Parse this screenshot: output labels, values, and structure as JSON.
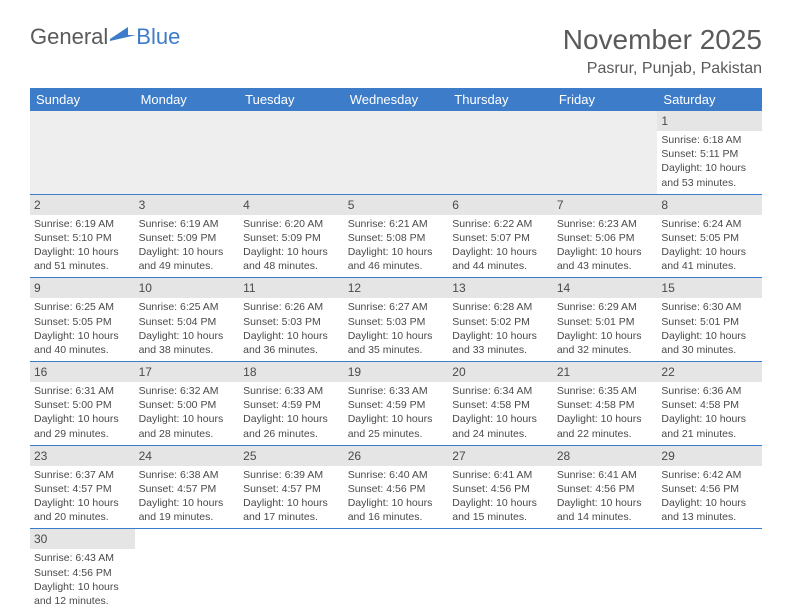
{
  "logo": {
    "general": "General",
    "blue": "Blue"
  },
  "title": "November 2025",
  "location": "Pasrur, Punjab, Pakistan",
  "colors": {
    "header_bg": "#3d7cc9",
    "header_text": "#ffffff",
    "daynum_bg": "#e5e5e5",
    "text": "#4a4a4a",
    "border": "#3d7cc9"
  },
  "day_headers": [
    "Sunday",
    "Monday",
    "Tuesday",
    "Wednesday",
    "Thursday",
    "Friday",
    "Saturday"
  ],
  "weeks": [
    [
      null,
      null,
      null,
      null,
      null,
      null,
      {
        "n": "1",
        "sr": "Sunrise: 6:18 AM",
        "ss": "Sunset: 5:11 PM",
        "dl": "Daylight: 10 hours and 53 minutes."
      }
    ],
    [
      {
        "n": "2",
        "sr": "Sunrise: 6:19 AM",
        "ss": "Sunset: 5:10 PM",
        "dl": "Daylight: 10 hours and 51 minutes."
      },
      {
        "n": "3",
        "sr": "Sunrise: 6:19 AM",
        "ss": "Sunset: 5:09 PM",
        "dl": "Daylight: 10 hours and 49 minutes."
      },
      {
        "n": "4",
        "sr": "Sunrise: 6:20 AM",
        "ss": "Sunset: 5:09 PM",
        "dl": "Daylight: 10 hours and 48 minutes."
      },
      {
        "n": "5",
        "sr": "Sunrise: 6:21 AM",
        "ss": "Sunset: 5:08 PM",
        "dl": "Daylight: 10 hours and 46 minutes."
      },
      {
        "n": "6",
        "sr": "Sunrise: 6:22 AM",
        "ss": "Sunset: 5:07 PM",
        "dl": "Daylight: 10 hours and 44 minutes."
      },
      {
        "n": "7",
        "sr": "Sunrise: 6:23 AM",
        "ss": "Sunset: 5:06 PM",
        "dl": "Daylight: 10 hours and 43 minutes."
      },
      {
        "n": "8",
        "sr": "Sunrise: 6:24 AM",
        "ss": "Sunset: 5:05 PM",
        "dl": "Daylight: 10 hours and 41 minutes."
      }
    ],
    [
      {
        "n": "9",
        "sr": "Sunrise: 6:25 AM",
        "ss": "Sunset: 5:05 PM",
        "dl": "Daylight: 10 hours and 40 minutes."
      },
      {
        "n": "10",
        "sr": "Sunrise: 6:25 AM",
        "ss": "Sunset: 5:04 PM",
        "dl": "Daylight: 10 hours and 38 minutes."
      },
      {
        "n": "11",
        "sr": "Sunrise: 6:26 AM",
        "ss": "Sunset: 5:03 PM",
        "dl": "Daylight: 10 hours and 36 minutes."
      },
      {
        "n": "12",
        "sr": "Sunrise: 6:27 AM",
        "ss": "Sunset: 5:03 PM",
        "dl": "Daylight: 10 hours and 35 minutes."
      },
      {
        "n": "13",
        "sr": "Sunrise: 6:28 AM",
        "ss": "Sunset: 5:02 PM",
        "dl": "Daylight: 10 hours and 33 minutes."
      },
      {
        "n": "14",
        "sr": "Sunrise: 6:29 AM",
        "ss": "Sunset: 5:01 PM",
        "dl": "Daylight: 10 hours and 32 minutes."
      },
      {
        "n": "15",
        "sr": "Sunrise: 6:30 AM",
        "ss": "Sunset: 5:01 PM",
        "dl": "Daylight: 10 hours and 30 minutes."
      }
    ],
    [
      {
        "n": "16",
        "sr": "Sunrise: 6:31 AM",
        "ss": "Sunset: 5:00 PM",
        "dl": "Daylight: 10 hours and 29 minutes."
      },
      {
        "n": "17",
        "sr": "Sunrise: 6:32 AM",
        "ss": "Sunset: 5:00 PM",
        "dl": "Daylight: 10 hours and 28 minutes."
      },
      {
        "n": "18",
        "sr": "Sunrise: 6:33 AM",
        "ss": "Sunset: 4:59 PM",
        "dl": "Daylight: 10 hours and 26 minutes."
      },
      {
        "n": "19",
        "sr": "Sunrise: 6:33 AM",
        "ss": "Sunset: 4:59 PM",
        "dl": "Daylight: 10 hours and 25 minutes."
      },
      {
        "n": "20",
        "sr": "Sunrise: 6:34 AM",
        "ss": "Sunset: 4:58 PM",
        "dl": "Daylight: 10 hours and 24 minutes."
      },
      {
        "n": "21",
        "sr": "Sunrise: 6:35 AM",
        "ss": "Sunset: 4:58 PM",
        "dl": "Daylight: 10 hours and 22 minutes."
      },
      {
        "n": "22",
        "sr": "Sunrise: 6:36 AM",
        "ss": "Sunset: 4:58 PM",
        "dl": "Daylight: 10 hours and 21 minutes."
      }
    ],
    [
      {
        "n": "23",
        "sr": "Sunrise: 6:37 AM",
        "ss": "Sunset: 4:57 PM",
        "dl": "Daylight: 10 hours and 20 minutes."
      },
      {
        "n": "24",
        "sr": "Sunrise: 6:38 AM",
        "ss": "Sunset: 4:57 PM",
        "dl": "Daylight: 10 hours and 19 minutes."
      },
      {
        "n": "25",
        "sr": "Sunrise: 6:39 AM",
        "ss": "Sunset: 4:57 PM",
        "dl": "Daylight: 10 hours and 17 minutes."
      },
      {
        "n": "26",
        "sr": "Sunrise: 6:40 AM",
        "ss": "Sunset: 4:56 PM",
        "dl": "Daylight: 10 hours and 16 minutes."
      },
      {
        "n": "27",
        "sr": "Sunrise: 6:41 AM",
        "ss": "Sunset: 4:56 PM",
        "dl": "Daylight: 10 hours and 15 minutes."
      },
      {
        "n": "28",
        "sr": "Sunrise: 6:41 AM",
        "ss": "Sunset: 4:56 PM",
        "dl": "Daylight: 10 hours and 14 minutes."
      },
      {
        "n": "29",
        "sr": "Sunrise: 6:42 AM",
        "ss": "Sunset: 4:56 PM",
        "dl": "Daylight: 10 hours and 13 minutes."
      }
    ],
    [
      {
        "n": "30",
        "sr": "Sunrise: 6:43 AM",
        "ss": "Sunset: 4:56 PM",
        "dl": "Daylight: 10 hours and 12 minutes."
      },
      null,
      null,
      null,
      null,
      null,
      null
    ]
  ]
}
